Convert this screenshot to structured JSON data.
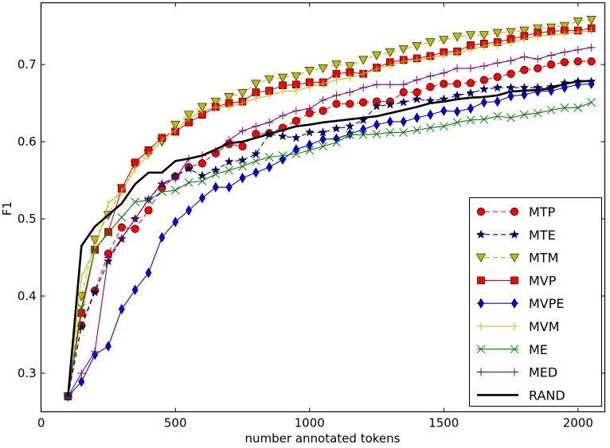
{
  "chart_data": {
    "type": "line",
    "title": "",
    "xlabel": "number annotated tokens",
    "ylabel": "F1",
    "xlim": [
      0,
      2100
    ],
    "ylim": [
      0.25,
      0.78
    ],
    "xticks": [
      0,
      500,
      1000,
      1500,
      2000
    ],
    "xtick_labels": [
      "0",
      "500",
      "1000",
      "1500",
      "2000"
    ],
    "yticks": [
      0.3,
      0.4,
      0.5,
      0.6,
      0.7
    ],
    "ytick_labels": [
      "0.3",
      "0.4",
      "0.5",
      "0.6",
      "0.7"
    ],
    "grid": false,
    "legend_position": "bottom-right",
    "x": [
      100,
      150,
      200,
      250,
      300,
      350,
      400,
      450,
      500,
      550,
      600,
      650,
      700,
      750,
      800,
      850,
      900,
      950,
      1000,
      1050,
      1100,
      1150,
      1200,
      1250,
      1300,
      1350,
      1400,
      1450,
      1500,
      1550,
      1600,
      1650,
      1700,
      1750,
      1800,
      1850,
      1900,
      1950,
      2000,
      2050
    ],
    "series": [
      {
        "name": "MTP",
        "color": "#ff0000",
        "marker": "circle",
        "dash": true,
        "values": [
          0.27,
          0.362,
          0.407,
          0.455,
          0.489,
          0.487,
          0.511,
          0.54,
          0.555,
          0.567,
          0.572,
          0.585,
          0.597,
          0.594,
          0.61,
          0.611,
          0.618,
          0.627,
          0.637,
          0.64,
          0.649,
          0.649,
          0.651,
          0.652,
          0.652,
          0.664,
          0.664,
          0.671,
          0.675,
          0.675,
          0.676,
          0.68,
          0.684,
          0.688,
          0.693,
          0.695,
          0.7,
          0.703,
          0.704,
          0.704
        ]
      },
      {
        "name": "MTE",
        "color": "#000080",
        "marker": "star",
        "dash": true,
        "values": [
          0.27,
          0.36,
          0.405,
          0.445,
          0.474,
          0.5,
          0.525,
          0.545,
          0.555,
          0.565,
          0.556,
          0.563,
          0.574,
          0.576,
          0.584,
          0.61,
          0.607,
          0.605,
          0.612,
          0.612,
          0.617,
          0.62,
          0.628,
          0.646,
          0.648,
          0.651,
          0.655,
          0.653,
          0.655,
          0.66,
          0.663,
          0.668,
          0.67,
          0.67,
          0.67,
          0.67,
          0.671,
          0.676,
          0.678,
          0.678
        ]
      },
      {
        "name": "MTM",
        "color": "#bfbf00",
        "marker": "triangle-down",
        "dash": true,
        "values": [
          0.27,
          0.4,
          0.473,
          0.505,
          0.54,
          0.57,
          0.585,
          0.6,
          0.622,
          0.635,
          0.645,
          0.652,
          0.658,
          0.663,
          0.675,
          0.681,
          0.683,
          0.685,
          0.692,
          0.695,
          0.7,
          0.698,
          0.706,
          0.712,
          0.716,
          0.72,
          0.724,
          0.729,
          0.732,
          0.736,
          0.738,
          0.738,
          0.741,
          0.742,
          0.744,
          0.747,
          0.748,
          0.75,
          0.756,
          0.758
        ]
      },
      {
        "name": "MVP",
        "color": "#ff0000",
        "marker": "square",
        "dash": false,
        "values": [
          0.27,
          0.378,
          0.46,
          0.483,
          0.539,
          0.573,
          0.589,
          0.605,
          0.613,
          0.625,
          0.635,
          0.645,
          0.65,
          0.652,
          0.664,
          0.666,
          0.673,
          0.674,
          0.677,
          0.677,
          0.688,
          0.69,
          0.688,
          0.696,
          0.703,
          0.706,
          0.708,
          0.711,
          0.716,
          0.717,
          0.725,
          0.727,
          0.729,
          0.733,
          0.737,
          0.741,
          0.743,
          0.744,
          0.744,
          0.747
        ]
      },
      {
        "name": "MVPE",
        "color": "#0000ff",
        "marker": "diamond",
        "dash": false,
        "values": [
          0.27,
          0.289,
          0.324,
          0.335,
          0.383,
          0.408,
          0.43,
          0.476,
          0.496,
          0.511,
          0.527,
          0.541,
          0.541,
          0.553,
          0.56,
          0.567,
          0.577,
          0.59,
          0.596,
          0.603,
          0.604,
          0.61,
          0.616,
          0.622,
          0.626,
          0.626,
          0.631,
          0.635,
          0.64,
          0.639,
          0.643,
          0.651,
          0.652,
          0.659,
          0.661,
          0.665,
          0.666,
          0.67,
          0.674,
          0.675
        ]
      },
      {
        "name": "MVM",
        "color": "#bfbf00",
        "marker": "vline",
        "dash": false,
        "values": [
          0.27,
          0.425,
          0.46,
          0.52,
          0.535,
          0.565,
          0.582,
          0.602,
          0.615,
          0.63,
          0.64,
          0.645,
          0.645,
          0.65,
          0.656,
          0.66,
          0.665,
          0.666,
          0.671,
          0.675,
          0.68,
          0.683,
          0.688,
          0.694,
          0.699,
          0.704,
          0.706,
          0.709,
          0.712,
          0.715,
          0.719,
          0.724,
          0.726,
          0.728,
          0.733,
          0.737,
          0.738,
          0.74,
          0.742,
          0.744
        ]
      },
      {
        "name": "ME",
        "color": "#008000",
        "marker": "x",
        "dash": false,
        "values": [
          0.27,
          0.385,
          0.46,
          0.482,
          0.502,
          0.522,
          0.524,
          0.535,
          0.537,
          0.547,
          0.549,
          0.558,
          0.563,
          0.568,
          0.575,
          0.58,
          0.582,
          0.584,
          0.589,
          0.594,
          0.599,
          0.609,
          0.609,
          0.61,
          0.612,
          0.612,
          0.615,
          0.618,
          0.62,
          0.625,
          0.628,
          0.629,
          0.633,
          0.631,
          0.635,
          0.637,
          0.641,
          0.644,
          0.644,
          0.651
        ]
      },
      {
        "name": "MED",
        "color": "#800080",
        "marker": "plus",
        "dash": false,
        "values": [
          0.27,
          0.3,
          0.328,
          0.45,
          0.475,
          0.5,
          0.525,
          0.546,
          0.552,
          0.578,
          0.582,
          0.588,
          0.602,
          0.614,
          0.62,
          0.625,
          0.634,
          0.64,
          0.643,
          0.654,
          0.66,
          0.664,
          0.67,
          0.674,
          0.674,
          0.674,
          0.68,
          0.685,
          0.689,
          0.695,
          0.695,
          0.698,
          0.702,
          0.705,
          0.71,
          0.707,
          0.712,
          0.716,
          0.719,
          0.722
        ]
      },
      {
        "name": "RAND",
        "color": "#000000",
        "marker": "none",
        "dash": false,
        "values": [
          0.27,
          0.465,
          0.49,
          0.505,
          0.52,
          0.545,
          0.56,
          0.56,
          0.575,
          0.578,
          0.582,
          0.59,
          0.598,
          0.6,
          0.605,
          0.61,
          0.615,
          0.62,
          0.622,
          0.625,
          0.627,
          0.629,
          0.631,
          0.633,
          0.637,
          0.641,
          0.645,
          0.65,
          0.652,
          0.655,
          0.657,
          0.658,
          0.66,
          0.665,
          0.666,
          0.667,
          0.669,
          0.675,
          0.678,
          0.679
        ]
      }
    ]
  }
}
